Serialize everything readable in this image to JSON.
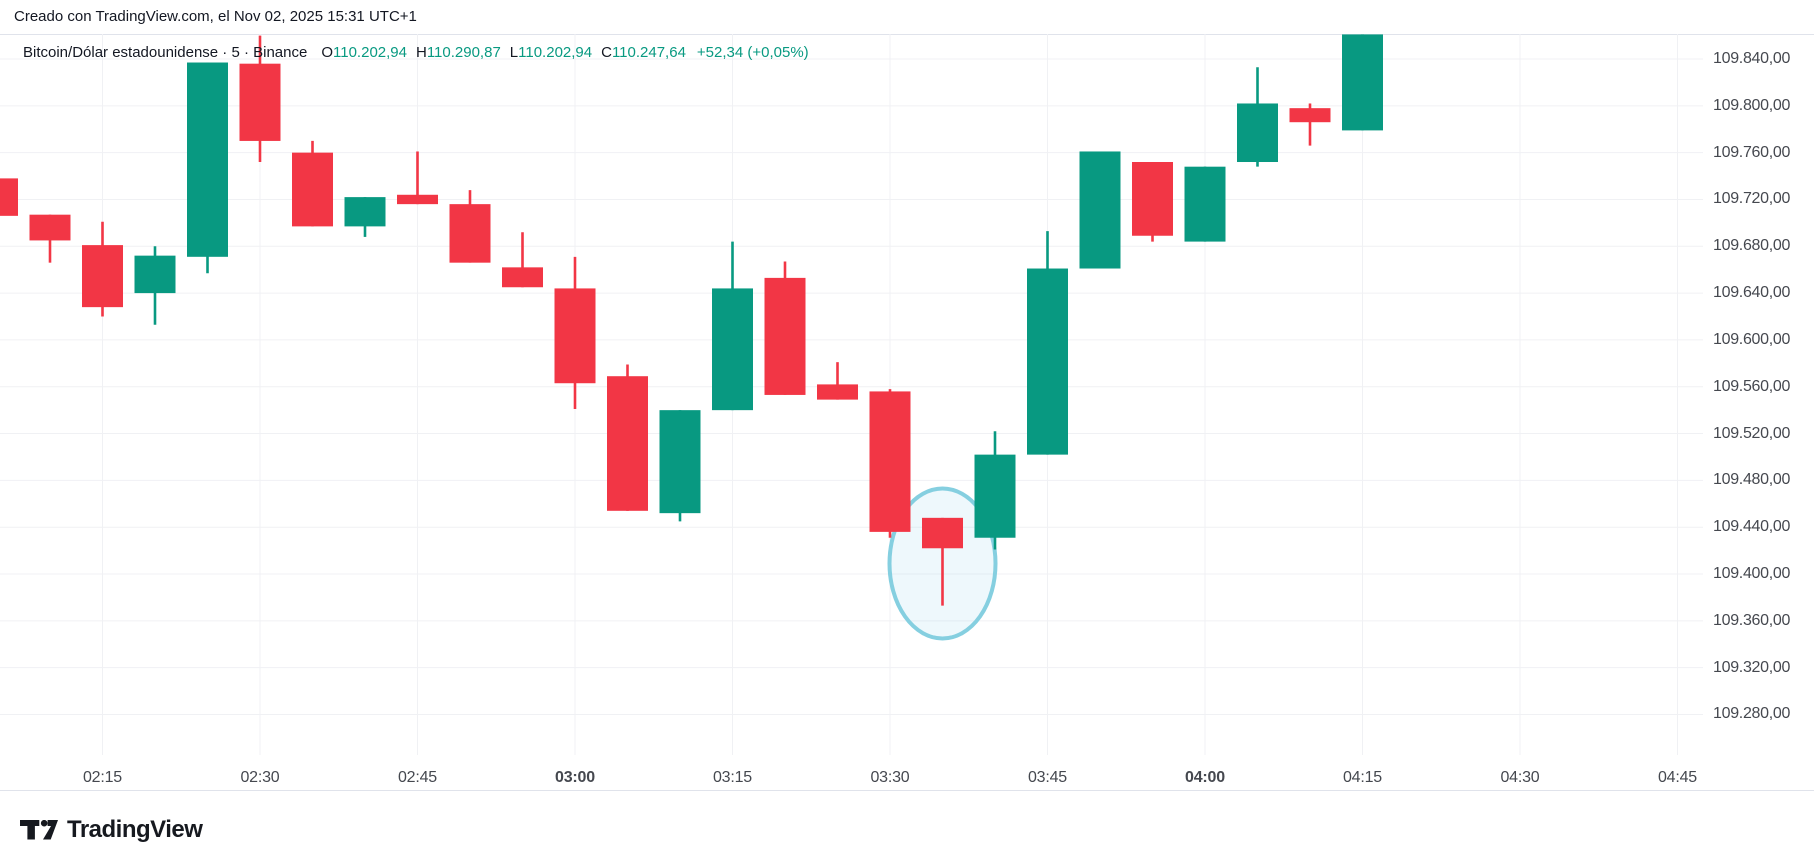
{
  "header": {
    "created_text": "Creado con TradingView.com, el Nov 02, 2025 15:31 UTC+1"
  },
  "legend": {
    "symbol_text": "Bitcoin/Dólar estadounidense · 5 · Binance",
    "ohlc": [
      {
        "label": "O",
        "value": "110.202,94"
      },
      {
        "label": "H",
        "value": "110.290,87"
      },
      {
        "label": "L",
        "value": "110.202,94"
      },
      {
        "label": "C",
        "value": "110.247,64"
      }
    ],
    "change_text": "+52,34 (+0,05%)"
  },
  "colors": {
    "up": "#089981",
    "down": "#f23645",
    "grid": "#f0f1f4",
    "border": "#e0e3eb",
    "axis_text": "#45484f",
    "text": "#131722",
    "ellipse_stroke": "#85cfe0",
    "ellipse_fill": "rgba(135,206,235,0.14)",
    "logo": "#16191f"
  },
  "chart_data": {
    "type": "candlestick",
    "symbol": "Bitcoin/Dólar estadounidense",
    "interval": "5",
    "exchange": "Binance",
    "candles": [
      {
        "time": "02:05",
        "open": 109738,
        "high": 109738,
        "low": 109706,
        "close": 109706
      },
      {
        "time": "02:10",
        "open": 109707,
        "high": 109707,
        "low": 109666,
        "close": 109685
      },
      {
        "time": "02:15",
        "open": 109681,
        "high": 109701,
        "low": 109620,
        "close": 109628
      },
      {
        "time": "02:20",
        "open": 109640,
        "high": 109680,
        "low": 109613,
        "close": 109672
      },
      {
        "time": "02:25",
        "open": 109671,
        "high": 109837,
        "low": 109657,
        "close": 109837
      },
      {
        "time": "02:30",
        "open": 109836,
        "high": 109860,
        "low": 109752,
        "close": 109770
      },
      {
        "time": "02:35",
        "open": 109760,
        "high": 109770,
        "low": 109697,
        "close": 109697
      },
      {
        "time": "02:40",
        "open": 109697,
        "high": 109722,
        "low": 109688,
        "close": 109722
      },
      {
        "time": "02:45",
        "open": 109724,
        "high": 109761,
        "low": 109716,
        "close": 109716
      },
      {
        "time": "02:50",
        "open": 109716,
        "high": 109728,
        "low": 109666,
        "close": 109666
      },
      {
        "time": "02:55",
        "open": 109662,
        "high": 109692,
        "low": 109645,
        "close": 109645
      },
      {
        "time": "03:00",
        "open": 109644,
        "high": 109671,
        "low": 109541,
        "close": 109563
      },
      {
        "time": "03:05",
        "open": 109569,
        "high": 109579,
        "low": 109454,
        "close": 109454
      },
      {
        "time": "03:10",
        "open": 109452,
        "high": 109540,
        "low": 109445,
        "close": 109540
      },
      {
        "time": "03:15",
        "open": 109540,
        "high": 109684,
        "low": 109540,
        "close": 109644
      },
      {
        "time": "03:20",
        "open": 109653,
        "high": 109667,
        "low": 109553,
        "close": 109553
      },
      {
        "time": "03:25",
        "open": 109562,
        "high": 109581,
        "low": 109549,
        "close": 109549
      },
      {
        "time": "03:30",
        "open": 109556,
        "high": 109558,
        "low": 109431,
        "close": 109436
      },
      {
        "time": "03:35",
        "open": 109448,
        "high": 109448,
        "low": 109373,
        "close": 109422
      },
      {
        "time": "03:40",
        "open": 109431,
        "high": 109522,
        "low": 109421,
        "close": 109502
      },
      {
        "time": "03:45",
        "open": 109502,
        "high": 109693,
        "low": 109502,
        "close": 109661
      },
      {
        "time": "03:50",
        "open": 109661,
        "high": 109761,
        "low": 109661,
        "close": 109761
      },
      {
        "time": "03:55",
        "open": 109752,
        "high": 109752,
        "low": 109684,
        "close": 109689
      },
      {
        "time": "04:00",
        "open": 109684,
        "high": 109748,
        "low": 109684,
        "close": 109748
      },
      {
        "time": "04:05",
        "open": 109752,
        "high": 109833,
        "low": 109748,
        "close": 109802
      },
      {
        "time": "04:10",
        "open": 109798,
        "high": 109802,
        "low": 109766,
        "close": 109786
      },
      {
        "time": "04:15",
        "open": 109779,
        "high": 109861,
        "low": 109779,
        "close": 109861
      }
    ],
    "price_axis": {
      "labels": [
        {
          "value": 109840,
          "label": "109.840,00"
        },
        {
          "value": 109800,
          "label": "109.800,00"
        },
        {
          "value": 109760,
          "label": "109.760,00"
        },
        {
          "value": 109720,
          "label": "109.720,00"
        },
        {
          "value": 109680,
          "label": "109.680,00"
        },
        {
          "value": 109640,
          "label": "109.640,00"
        },
        {
          "value": 109600,
          "label": "109.600,00"
        },
        {
          "value": 109560,
          "label": "109.560,00"
        },
        {
          "value": 109520,
          "label": "109.520,00"
        },
        {
          "value": 109480,
          "label": "109.480,00"
        },
        {
          "value": 109440,
          "label": "109.440,00"
        },
        {
          "value": 109400,
          "label": "109.400,00"
        },
        {
          "value": 109360,
          "label": "109.360,00"
        },
        {
          "value": 109320,
          "label": "109.320,00"
        },
        {
          "value": 109280,
          "label": "109.280,00"
        }
      ]
    },
    "time_axis": [
      {
        "label": "02:15",
        "bold": false
      },
      {
        "label": "02:30",
        "bold": false
      },
      {
        "label": "02:45",
        "bold": false
      },
      {
        "label": "03:00",
        "bold": true
      },
      {
        "label": "03:15",
        "bold": false
      },
      {
        "label": "03:30",
        "bold": false
      },
      {
        "label": "03:45",
        "bold": false
      },
      {
        "label": "04:00",
        "bold": true
      },
      {
        "label": "04:15",
        "bold": false
      },
      {
        "label": "04:30",
        "bold": false
      },
      {
        "label": "04:45",
        "bold": false
      }
    ],
    "annotation": {
      "shape": "ellipse",
      "time": "03:35",
      "price": 109409
    }
  },
  "footer": {
    "logo_text": "TradingView"
  }
}
